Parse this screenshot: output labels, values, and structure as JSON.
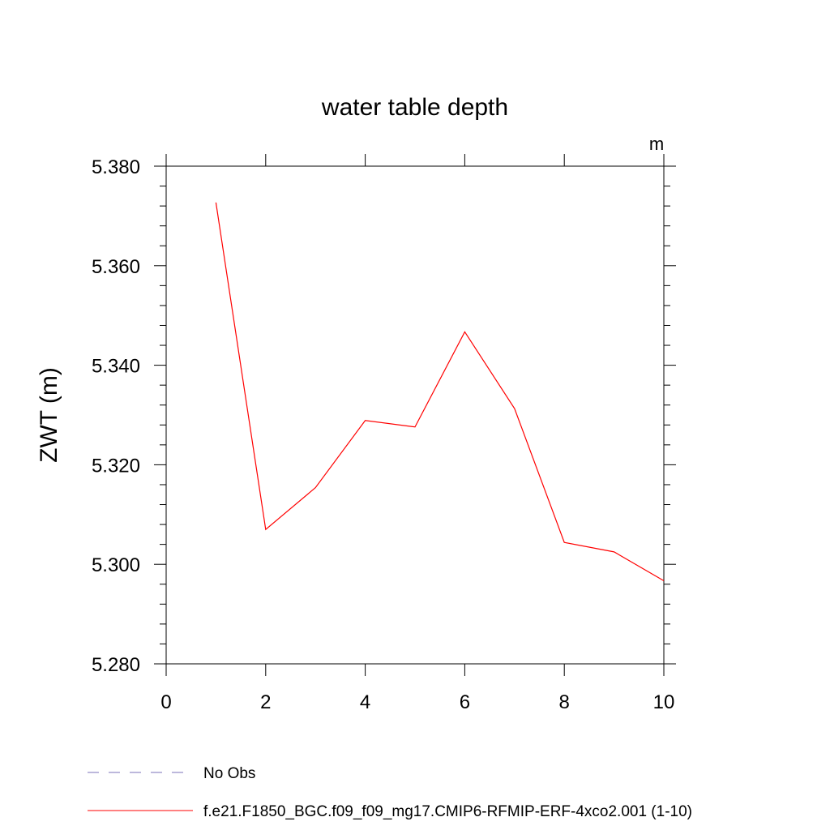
{
  "chart_data": {
    "type": "line",
    "title": "water table depth",
    "units_label": "m",
    "ylabel": "ZWT  (m)",
    "xlabel": "",
    "xlim": [
      0,
      10
    ],
    "ylim": [
      5.28,
      5.38
    ],
    "x_ticks": [
      0,
      2,
      4,
      6,
      8,
      10
    ],
    "x_tick_labels": [
      "0",
      "2",
      "4",
      "6",
      "8",
      "10"
    ],
    "y_ticks": [
      5.28,
      5.3,
      5.32,
      5.34,
      5.36,
      5.38
    ],
    "y_tick_labels": [
      "5.280",
      "5.300",
      "5.320",
      "5.340",
      "5.360",
      "5.380"
    ],
    "grid": false,
    "legend_position": "bottom",
    "series": [
      {
        "name": "f.e21.F1850_BGC.f09_f09_mg17.CMIP6-RFMIP-ERF-4xco2.001 (1-10)",
        "color": "#ff0000",
        "style": "solid",
        "x": [
          1,
          2,
          3,
          4,
          5,
          6,
          7,
          8,
          9,
          10
        ],
        "y": [
          5.3727,
          5.307,
          5.3154,
          5.3289,
          5.3276,
          5.3467,
          5.3313,
          5.3044,
          5.3025,
          5.2967
        ]
      }
    ],
    "legend": [
      {
        "label": "No Obs",
        "color": "#7b72b8",
        "style": "dashed"
      },
      {
        "label": "f.e21.F1850_BGC.f09_f09_mg17.CMIP6-RFMIP-ERF-4xco2.001 (1-10)",
        "color": "#ff0000",
        "style": "solid"
      }
    ]
  }
}
